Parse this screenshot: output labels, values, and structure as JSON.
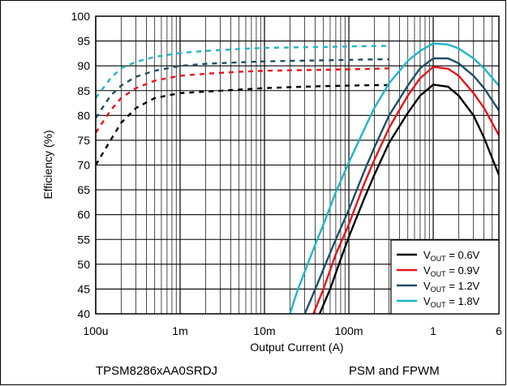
{
  "chart_data": {
    "type": "line",
    "xlabel": "Output Current (A)",
    "ylabel": "Efficiency (%)",
    "x_scale": "log",
    "xlim": [
      0.0001,
      6
    ],
    "ylim": [
      40,
      100
    ],
    "x_ticks": [
      0.0001,
      0.001,
      0.01,
      0.1,
      1,
      6
    ],
    "x_tick_labels": [
      "100u",
      "1m",
      "10m",
      "100m",
      "1",
      "6"
    ],
    "y_ticks": [
      40,
      45,
      50,
      55,
      60,
      65,
      70,
      75,
      80,
      85,
      90,
      95,
      100
    ],
    "grid": true,
    "legend_position": "bottom-right",
    "series": [
      {
        "name": "V_OUT = 0.6V",
        "label_main": "V",
        "label_sub": "OUT",
        "label_rest": " = 0.6V",
        "color": "#000000",
        "mode_psm": {
          "x": [
            0.0001,
            0.00015,
            0.0002,
            0.0003,
            0.0005,
            0.001,
            0.002,
            0.005,
            0.01,
            0.02,
            0.05,
            0.1,
            0.2,
            0.3
          ],
          "y": [
            70,
            75,
            78.5,
            81.5,
            83.5,
            84.5,
            84.8,
            85.2,
            85.5,
            85.7,
            85.9,
            86,
            86.1,
            86.1
          ]
        },
        "mode_fpwm": {
          "x": [
            0.045,
            0.06,
            0.08,
            0.1,
            0.15,
            0.2,
            0.3,
            0.5,
            0.7,
            1,
            1.5,
            2,
            3,
            4,
            6
          ],
          "y": [
            40,
            45,
            51,
            55.5,
            63,
            68,
            74.5,
            80.5,
            84,
            86.2,
            85.8,
            84,
            80,
            75.5,
            68
          ]
        }
      },
      {
        "name": "V_OUT = 0.9V",
        "label_main": "V",
        "label_sub": "OUT",
        "label_rest": " = 0.9V",
        "color": "#e8141c",
        "mode_psm": {
          "x": [
            0.0001,
            0.00015,
            0.0002,
            0.0003,
            0.0005,
            0.001,
            0.002,
            0.005,
            0.01,
            0.02,
            0.05,
            0.1,
            0.2,
            0.3
          ],
          "y": [
            76.5,
            81,
            83.5,
            85.5,
            87,
            88,
            88.4,
            88.8,
            89,
            89.1,
            89.2,
            89.3,
            89.4,
            89.5
          ]
        },
        "mode_fpwm": {
          "x": [
            0.038,
            0.05,
            0.07,
            0.1,
            0.15,
            0.2,
            0.3,
            0.5,
            0.7,
            1,
            1.5,
            2,
            3,
            4,
            6
          ],
          "y": [
            40,
            45,
            52,
            58,
            66,
            71,
            77.5,
            84,
            87.5,
            89.8,
            89.4,
            88,
            84.5,
            81.5,
            76
          ]
        }
      },
      {
        "name": "V_OUT = 1.2V",
        "label_main": "V",
        "label_sub": "OUT",
        "label_rest": " = 1.2V",
        "color": "#1f4e66",
        "mode_psm": {
          "x": [
            0.0001,
            0.00015,
            0.0002,
            0.0003,
            0.0005,
            0.001,
            0.002,
            0.005,
            0.01,
            0.02,
            0.05,
            0.1,
            0.2,
            0.3
          ],
          "y": [
            79.5,
            84,
            86,
            87.8,
            89,
            90,
            90.4,
            90.7,
            90.9,
            91,
            91.1,
            91.2,
            91.3,
            91.3
          ]
        },
        "mode_fpwm": {
          "x": [
            0.03,
            0.04,
            0.05,
            0.07,
            0.1,
            0.15,
            0.2,
            0.3,
            0.5,
            0.7,
            1,
            1.5,
            2,
            3,
            4,
            6
          ],
          "y": [
            40,
            45,
            49,
            55,
            61,
            68.5,
            73.5,
            80,
            86,
            89.5,
            91.5,
            91.5,
            90.5,
            88,
            85.5,
            81
          ]
        }
      },
      {
        "name": "V_OUT = 1.8V",
        "label_main": "V",
        "label_sub": "OUT",
        "label_rest": " = 1.8V",
        "color": "#1fb5c8",
        "mode_psm": {
          "x": [
            0.0001,
            0.00015,
            0.0002,
            0.0003,
            0.0005,
            0.001,
            0.002,
            0.005,
            0.01,
            0.02,
            0.05,
            0.1,
            0.2,
            0.3
          ],
          "y": [
            83.5,
            87.5,
            89.5,
            90.8,
            91.8,
            92.6,
            93,
            93.4,
            93.6,
            93.7,
            93.8,
            93.9,
            94,
            94
          ]
        },
        "mode_fpwm": {
          "x": [
            0.02,
            0.025,
            0.03,
            0.04,
            0.05,
            0.07,
            0.1,
            0.15,
            0.2,
            0.3,
            0.5,
            0.7,
            1,
            1.5,
            2,
            3,
            4,
            6
          ],
          "y": [
            40,
            45,
            48.5,
            54,
            58,
            64.5,
            70.5,
            77,
            81.5,
            86.5,
            91,
            93,
            94.5,
            94.3,
            93.5,
            91.5,
            89.5,
            86
          ]
        }
      }
    ]
  },
  "captions": {
    "left": "TPSM8286xAA0SRDJ",
    "right": "PSM and FPWM"
  }
}
